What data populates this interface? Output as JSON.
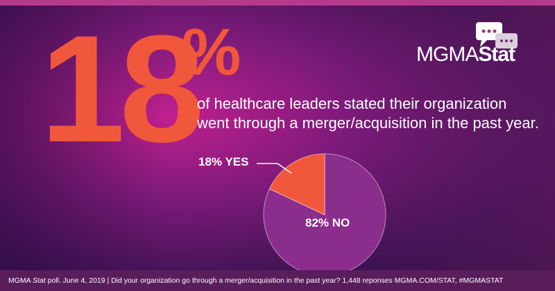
{
  "headline": {
    "number": "18",
    "unit": "%"
  },
  "statement": [
    "of healthcare leaders stated their organization",
    "went through a merger/acquisition in the past year."
  ],
  "logo": {
    "left": "MGMA",
    "right": "Stat"
  },
  "footer": {
    "lead": "MGMA",
    "italic": "Stat",
    "text": "poll. June 4, 2019 | Did your organization go through a merger/acquisition in the past year? 1,448 reponses MGMA.COM/STAT, #MGMASTAT"
  },
  "chart_data": {
    "type": "pie",
    "categories": [
      "YES",
      "NO"
    ],
    "values": [
      18,
      82
    ],
    "value_labels": [
      "18% YES",
      "82% NO"
    ],
    "colors": [
      "#f1573a",
      "#8b2d8c"
    ]
  }
}
